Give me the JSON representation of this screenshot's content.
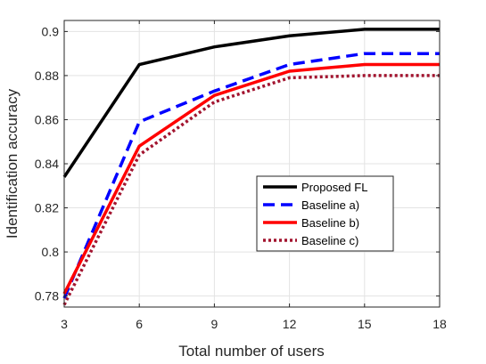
{
  "chart_data": {
    "type": "line",
    "xlabel": "Total number of users",
    "ylabel": "Identification accuracy",
    "xlim": [
      3,
      18
    ],
    "ylim": [
      0.775,
      0.905
    ],
    "xticks": [
      3,
      6,
      9,
      12,
      15,
      18
    ],
    "yticks": [
      0.78,
      0.8,
      0.82,
      0.84,
      0.86,
      0.88,
      0.9
    ],
    "ytick_labels": [
      "0.78",
      "0.8",
      "0.82",
      "0.84",
      "0.86",
      "0.88",
      "0.9"
    ],
    "grid": true,
    "legend_position": "lower-right",
    "x": [
      3,
      6,
      9,
      12,
      15,
      18
    ],
    "series": [
      {
        "name": "Proposed FL",
        "values": [
          0.834,
          0.885,
          0.893,
          0.898,
          0.901,
          0.901
        ],
        "color": "#000000",
        "dash": "solid"
      },
      {
        "name": "Baseline a)",
        "values": [
          0.779,
          0.859,
          0.873,
          0.885,
          0.89,
          0.89
        ],
        "color": "#0000ff",
        "dash": "dashed"
      },
      {
        "name": "Baseline b)",
        "values": [
          0.781,
          0.848,
          0.871,
          0.882,
          0.885,
          0.885
        ],
        "color": "#ff0000",
        "dash": "solid"
      },
      {
        "name": "Baseline c)",
        "values": [
          0.776,
          0.844,
          0.868,
          0.879,
          0.88,
          0.88
        ],
        "color": "#a2142f",
        "dash": "dotted"
      }
    ]
  }
}
